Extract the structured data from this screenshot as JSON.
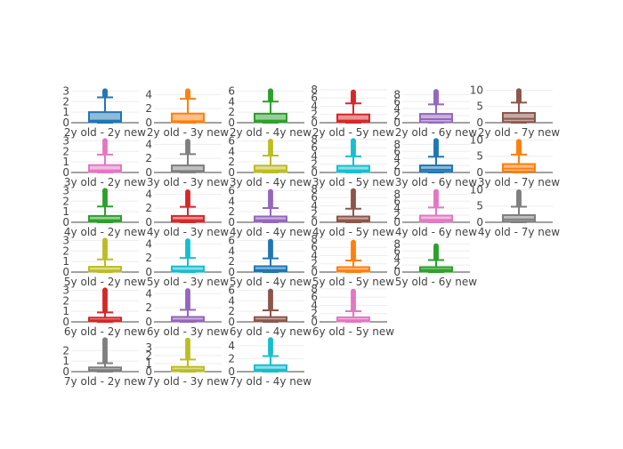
{
  "chart_data": [
    {
      "type": "box",
      "label": "2y old - 2y new",
      "row": 0,
      "col": 0,
      "color": "#1f77b4",
      "ylim": [
        0,
        3.2
      ],
      "yticks": [
        0,
        1,
        2,
        3
      ],
      "lower": 0,
      "q1": 0.05,
      "median": 0.2,
      "q3": 1.0,
      "upper": 2.4,
      "outliers": [
        2.6,
        2.75,
        2.9,
        3.0
      ]
    },
    {
      "type": "box",
      "label": "2y old - 3y new",
      "row": 0,
      "col": 1,
      "color": "#ff7f0e",
      "ylim": [
        0,
        4.8
      ],
      "yticks": [
        0,
        2,
        4
      ],
      "lower": 0,
      "q1": 0.05,
      "median": 0.2,
      "q3": 1.3,
      "upper": 3.4,
      "outliers": [
        3.7,
        3.9,
        4.1,
        4.3,
        4.5
      ]
    },
    {
      "type": "box",
      "label": "2y old - 4y new",
      "row": 0,
      "col": 2,
      "color": "#2ca02c",
      "ylim": [
        0,
        6.4
      ],
      "yticks": [
        0,
        2,
        4,
        6
      ],
      "lower": 0,
      "q1": 0.1,
      "median": 0.4,
      "q3": 1.7,
      "upper": 4.0,
      "outliers": [
        4.3,
        4.6,
        4.9,
        5.2,
        5.5,
        5.8,
        6.0
      ]
    },
    {
      "type": "box",
      "label": "2y old - 5y new",
      "row": 0,
      "col": 3,
      "color": "#d62728",
      "ylim": [
        0,
        8.2
      ],
      "yticks": [
        0,
        2,
        4,
        6,
        8
      ],
      "lower": 0,
      "q1": 0.1,
      "median": 0.5,
      "q3": 2.0,
      "upper": 4.7,
      "outliers": [
        5.0,
        5.4,
        5.8,
        6.2,
        6.6,
        7.0,
        7.4
      ]
    },
    {
      "type": "box",
      "label": "2y old - 6y new",
      "row": 0,
      "col": 4,
      "color": "#9467bd",
      "ylim": [
        0,
        9.6
      ],
      "yticks": [
        0,
        2,
        4,
        6,
        8
      ],
      "lower": 0,
      "q1": 0.1,
      "median": 1.0,
      "q3": 2.5,
      "upper": 5.2,
      "outliers": [
        5.6,
        6.0,
        6.4,
        6.8,
        7.2,
        7.6,
        8.0,
        8.4,
        8.8
      ]
    },
    {
      "type": "box",
      "label": "2y old - 7y new",
      "row": 0,
      "col": 5,
      "color": "#8c564b",
      "ylim": [
        0,
        10.4
      ],
      "yticks": [
        0,
        5,
        10
      ],
      "lower": 0,
      "q1": 0.2,
      "median": 1.2,
      "q3": 3.0,
      "upper": 6.2,
      "outliers": [
        6.6,
        7.0,
        7.4,
        7.8,
        8.2,
        8.6,
        9.0,
        9.4,
        9.8
      ]
    },
    {
      "type": "box",
      "label": "3y old - 2y new",
      "row": 1,
      "col": 0,
      "color": "#e377c2",
      "ylim": [
        0,
        3.2
      ],
      "yticks": [
        0,
        1,
        2,
        3
      ],
      "lower": 0,
      "q1": 0.05,
      "median": 0.2,
      "q3": 0.7,
      "upper": 1.7,
      "outliers": [
        1.9,
        2.1,
        2.3,
        2.5,
        2.7,
        2.9,
        3.0
      ]
    },
    {
      "type": "box",
      "label": "3y old - 3y new",
      "row": 1,
      "col": 1,
      "color": "#7f7f7f",
      "ylim": [
        0,
        4.8
      ],
      "yticks": [
        0,
        2,
        4
      ],
      "lower": 0,
      "q1": 0.05,
      "median": 0.2,
      "q3": 1.0,
      "upper": 2.6,
      "outliers": [
        2.9,
        3.2,
        3.5,
        3.8,
        4.1,
        4.4
      ]
    },
    {
      "type": "box",
      "label": "3y old - 4y new",
      "row": 1,
      "col": 2,
      "color": "#bcbd22",
      "ylim": [
        0,
        6.4
      ],
      "yticks": [
        0,
        2,
        4,
        6
      ],
      "lower": 0,
      "q1": 0.1,
      "median": 0.4,
      "q3": 1.3,
      "upper": 3.2,
      "outliers": [
        3.5,
        3.9,
        4.3,
        4.7,
        5.1,
        5.5,
        5.9
      ]
    },
    {
      "type": "box",
      "label": "3y old - 5y new",
      "row": 1,
      "col": 3,
      "color": "#17becf",
      "ylim": [
        0,
        8.2
      ],
      "yticks": [
        0,
        2,
        4,
        6,
        8
      ],
      "lower": 0,
      "q1": 0.1,
      "median": 0.5,
      "q3": 1.6,
      "upper": 3.9,
      "outliers": [
        4.3,
        4.8,
        5.3,
        5.8,
        6.3,
        6.8,
        7.3,
        7.7
      ]
    },
    {
      "type": "box",
      "label": "3y old - 6y new",
      "row": 1,
      "col": 4,
      "color": "#1f77b4",
      "ylim": [
        0,
        9.6
      ],
      "yticks": [
        0,
        2,
        4,
        6,
        8
      ],
      "lower": 0,
      "q1": 0.2,
      "median": 0.8,
      "q3": 2.0,
      "upper": 4.5,
      "outliers": [
        5.0,
        5.5,
        6.0,
        6.5,
        7.0,
        7.5,
        8.0,
        8.5,
        9.0
      ]
    },
    {
      "type": "box",
      "label": "3y old - 7y new",
      "row": 1,
      "col": 5,
      "color": "#ff7f0e",
      "ylim": [
        0,
        10.4
      ],
      "yticks": [
        0,
        5,
        10
      ],
      "lower": 0,
      "q1": 0.3,
      "median": 1.2,
      "q3": 2.6,
      "upper": 5.5,
      "outliers": [
        6.0,
        6.5,
        7.0,
        7.5,
        8.0,
        8.5,
        9.0,
        9.5
      ]
    },
    {
      "type": "box",
      "label": "4y old - 2y new",
      "row": 2,
      "col": 0,
      "color": "#2ca02c",
      "ylim": [
        0,
        3.2
      ],
      "yticks": [
        0,
        1,
        2,
        3
      ],
      "lower": 0,
      "q1": 0.05,
      "median": 0.2,
      "q3": 0.6,
      "upper": 1.5,
      "outliers": [
        1.7,
        1.9,
        2.1,
        2.3,
        2.5,
        2.7,
        2.9,
        3.0
      ]
    },
    {
      "type": "box",
      "label": "4y old - 3y new",
      "row": 2,
      "col": 1,
      "color": "#d62728",
      "ylim": [
        0,
        4.8
      ],
      "yticks": [
        0,
        2,
        4
      ],
      "lower": 0,
      "q1": 0.05,
      "median": 0.3,
      "q3": 0.9,
      "upper": 2.2,
      "outliers": [
        2.5,
        2.8,
        3.1,
        3.4,
        3.7,
        4.0,
        4.3
      ]
    },
    {
      "type": "box",
      "label": "4y old - 4y new",
      "row": 2,
      "col": 2,
      "color": "#9467bd",
      "ylim": [
        0,
        6.4
      ],
      "yticks": [
        0,
        2,
        4,
        6
      ],
      "lower": 0,
      "q1": 0.1,
      "median": 0.4,
      "q3": 1.1,
      "upper": 2.7,
      "outliers": [
        3.0,
        3.4,
        3.8,
        4.2,
        4.6,
        5.0,
        5.4,
        5.8
      ]
    },
    {
      "type": "box",
      "label": "4y old - 5y new",
      "row": 2,
      "col": 3,
      "color": "#8c564b",
      "ylim": [
        0,
        8.2
      ],
      "yticks": [
        0,
        2,
        4,
        6,
        8
      ],
      "lower": 0,
      "q1": 0.1,
      "median": 0.5,
      "q3": 1.4,
      "upper": 3.3,
      "outliers": [
        3.7,
        4.2,
        4.7,
        5.2,
        5.7,
        6.2,
        6.7,
        7.2,
        7.6
      ]
    },
    {
      "type": "box",
      "label": "4y old - 6y new",
      "row": 2,
      "col": 4,
      "color": "#e377c2",
      "ylim": [
        0,
        9.6
      ],
      "yticks": [
        0,
        2,
        4,
        6,
        8
      ],
      "lower": 0,
      "q1": 0.2,
      "median": 0.7,
      "q3": 1.9,
      "upper": 4.2,
      "outliers": [
        4.7,
        5.2,
        5.7,
        6.2,
        6.7,
        7.2,
        7.7,
        8.2,
        8.7
      ]
    },
    {
      "type": "box",
      "label": "4y old - 7y new",
      "row": 2,
      "col": 5,
      "color": "#7f7f7f",
      "ylim": [
        0,
        10.4
      ],
      "yticks": [
        0,
        5,
        10
      ],
      "lower": 0,
      "q1": 0.2,
      "median": 0.9,
      "q3": 2.2,
      "upper": 4.8,
      "outliers": [
        5.3,
        5.8,
        6.3,
        6.8,
        7.3,
        7.8,
        8.3,
        8.8,
        9.3
      ]
    },
    {
      "type": "box",
      "label": "5y old - 2y new",
      "row": 3,
      "col": 0,
      "color": "#bcbd22",
      "ylim": [
        0,
        3.2
      ],
      "yticks": [
        0,
        1,
        2,
        3
      ],
      "lower": 0,
      "q1": 0.05,
      "median": 0.15,
      "q3": 0.5,
      "upper": 1.2,
      "outliers": [
        1.4,
        1.6,
        1.8,
        2.0,
        2.2,
        2.4,
        2.6,
        2.8,
        3.0
      ]
    },
    {
      "type": "box",
      "label": "5y old - 3y new",
      "row": 3,
      "col": 1,
      "color": "#17becf",
      "ylim": [
        0,
        4.8
      ],
      "yticks": [
        0,
        2,
        4
      ],
      "lower": 0,
      "q1": 0.05,
      "median": 0.2,
      "q3": 0.8,
      "upper": 2.0,
      "outliers": [
        2.3,
        2.6,
        2.9,
        3.2,
        3.5,
        3.8,
        4.1,
        4.4
      ]
    },
    {
      "type": "box",
      "label": "5y old - 4y new",
      "row": 3,
      "col": 2,
      "color": "#1f77b4",
      "ylim": [
        0,
        6.4
      ],
      "yticks": [
        0,
        2,
        4,
        6
      ],
      "lower": 0,
      "q1": 0.1,
      "median": 0.4,
      "q3": 1.1,
      "upper": 2.6,
      "outliers": [
        3.0,
        3.4,
        3.8,
        4.2,
        4.6,
        5.0,
        5.4,
        5.8
      ]
    },
    {
      "type": "box",
      "label": "5y old - 5y new",
      "row": 3,
      "col": 3,
      "color": "#ff7f0e",
      "ylim": [
        0,
        8.2
      ],
      "yticks": [
        0,
        2,
        4,
        6,
        8
      ],
      "lower": 0,
      "q1": 0.1,
      "median": 0.4,
      "q3": 1.2,
      "upper": 2.8,
      "outliers": [
        3.2,
        3.7,
        4.2,
        4.7,
        5.2,
        5.7,
        6.2,
        6.7,
        7.2
      ]
    },
    {
      "type": "box",
      "label": "5y old - 6y new",
      "row": 3,
      "col": 4,
      "color": "#2ca02c",
      "ylim": [
        0,
        9.6
      ],
      "yticks": [
        0,
        2,
        4,
        6,
        8
      ],
      "lower": 0,
      "q1": 0.1,
      "median": 0.6,
      "q3": 1.4,
      "upper": 3.4,
      "outliers": [
        3.9,
        4.4,
        4.9,
        5.4,
        5.9,
        6.4,
        6.9,
        7.4
      ]
    },
    {
      "type": "box",
      "label": "6y old - 2y new",
      "row": 4,
      "col": 0,
      "color": "#d62728",
      "ylim": [
        0,
        3.2
      ],
      "yticks": [
        0,
        1,
        2,
        3
      ],
      "lower": 0,
      "q1": 0.05,
      "median": 0.15,
      "q3": 0.4,
      "upper": 0.9,
      "outliers": [
        1.1,
        1.3,
        1.5,
        1.7,
        1.9,
        2.1,
        2.3,
        2.5,
        2.7,
        2.9,
        3.0
      ]
    },
    {
      "type": "box",
      "label": "6y old - 3y new",
      "row": 4,
      "col": 1,
      "color": "#9467bd",
      "ylim": [
        0,
        4.8
      ],
      "yticks": [
        0,
        2,
        4
      ],
      "lower": 0,
      "q1": 0.05,
      "median": 0.2,
      "q3": 0.7,
      "upper": 1.7,
      "outliers": [
        2.0,
        2.3,
        2.6,
        2.9,
        3.2,
        3.5,
        3.8,
        4.1,
        4.4
      ]
    },
    {
      "type": "box",
      "label": "6y old - 4y new",
      "row": 4,
      "col": 2,
      "color": "#8c564b",
      "ylim": [
        0,
        6.4
      ],
      "yticks": [
        0,
        2,
        4,
        6
      ],
      "lower": 0,
      "q1": 0.1,
      "median": 0.3,
      "q3": 0.9,
      "upper": 2.2,
      "outliers": [
        2.6,
        3.0,
        3.4,
        3.8,
        4.2,
        4.6,
        5.0,
        5.4,
        5.8
      ]
    },
    {
      "type": "box",
      "label": "6y old - 5y new",
      "row": 4,
      "col": 3,
      "color": "#e377c2",
      "ylim": [
        0,
        8.2
      ],
      "yticks": [
        0,
        2,
        4,
        6,
        8
      ],
      "lower": 0,
      "q1": 0.1,
      "median": 0.4,
      "q3": 1.1,
      "upper": 2.6,
      "outliers": [
        3.0,
        3.5,
        4.0,
        4.5,
        5.0,
        5.5,
        6.0,
        6.5,
        7.0,
        7.4
      ]
    },
    {
      "type": "box",
      "label": "7y old - 2y new",
      "row": 5,
      "col": 0,
      "color": "#7f7f7f",
      "ylim": [
        0,
        3.2
      ],
      "yticks": [
        0,
        1,
        2
      ],
      "lower": 0,
      "q1": 0.05,
      "median": 0.15,
      "q3": 0.4,
      "upper": 0.8,
      "outliers": [
        1.0,
        1.2,
        1.4,
        1.6,
        1.8,
        2.0,
        2.2,
        2.4,
        2.6,
        2.8,
        3.0
      ]
    },
    {
      "type": "box",
      "label": "7y old - 3y new",
      "row": 5,
      "col": 1,
      "color": "#bcbd22",
      "ylim": [
        0,
        4.2
      ],
      "yticks": [
        0,
        1,
        2,
        3
      ],
      "lower": 0,
      "q1": 0.05,
      "median": 0.2,
      "q3": 0.6,
      "upper": 1.5,
      "outliers": [
        1.8,
        2.1,
        2.4,
        2.7,
        3.0,
        3.3,
        3.6,
        3.9
      ]
    },
    {
      "type": "box",
      "label": "7y old - 4y new",
      "row": 5,
      "col": 2,
      "color": "#17becf",
      "ylim": [
        0,
        5.2
      ],
      "yticks": [
        0,
        2,
        4
      ],
      "lower": 0,
      "q1": 0.1,
      "median": 0.3,
      "q3": 1.0,
      "upper": 2.4,
      "outliers": [
        2.8,
        3.1,
        3.4,
        3.7,
        4.0,
        4.3,
        4.6,
        4.9
      ]
    }
  ]
}
